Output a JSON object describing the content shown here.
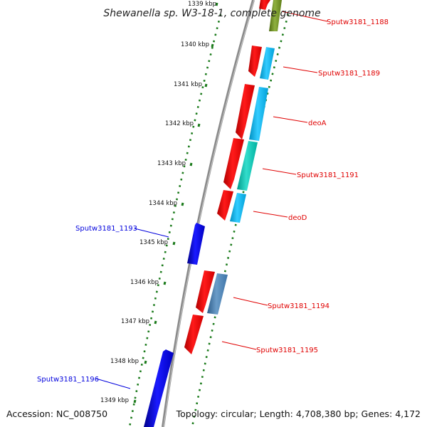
{
  "title": "Shewanella sp. W3-18-1, complete genome",
  "footer": {
    "accession": "Accession: NC_008750",
    "topology": "Topology: circular; Length: 4,708,380 bp; Genes: 4,172"
  },
  "ruler": [
    {
      "label": "1339 kbp"
    },
    {
      "label": "1340 kbp"
    },
    {
      "label": "1341 kbp"
    },
    {
      "label": "1342 kbp"
    },
    {
      "label": "1343 kbp"
    },
    {
      "label": "1344 kbp"
    },
    {
      "label": "1345 kbp"
    },
    {
      "label": "1346 kbp"
    },
    {
      "label": "1347 kbp"
    },
    {
      "label": "1348 kbp"
    },
    {
      "label": "1349 kbp"
    }
  ],
  "genes": [
    {
      "name": "Sputw3181_1188",
      "strand": "forward",
      "color": "#e00000"
    },
    {
      "name": "Sputw3181_1189",
      "strand": "forward",
      "color": "#e00000"
    },
    {
      "name": "deoA",
      "strand": "forward",
      "color": "#e00000"
    },
    {
      "name": "Sputw3181_1191",
      "strand": "forward",
      "color": "#e00000"
    },
    {
      "name": "deoD",
      "strand": "forward",
      "color": "#e00000"
    },
    {
      "name": "Sputw3181_1193",
      "strand": "reverse",
      "color": "#0000dd"
    },
    {
      "name": "Sputw3181_1194",
      "strand": "forward",
      "color": "#e00000"
    },
    {
      "name": "Sputw3181_1195",
      "strand": "forward",
      "color": "#e00000"
    },
    {
      "name": "Sputw3181_1196",
      "strand": "reverse",
      "color": "#0000dd"
    }
  ],
  "colors": {
    "backbone": "#8a8a8a",
    "ruler_ticks": "#1a7a1a",
    "forward_gene": "#ff0000",
    "reverse_gene": "#0000ee",
    "cog_cyan": "#00b4ee",
    "cog_teal": "#00c0b0",
    "cog_steelblue": "#4682b4",
    "cog_olive": "#6b8e23"
  }
}
